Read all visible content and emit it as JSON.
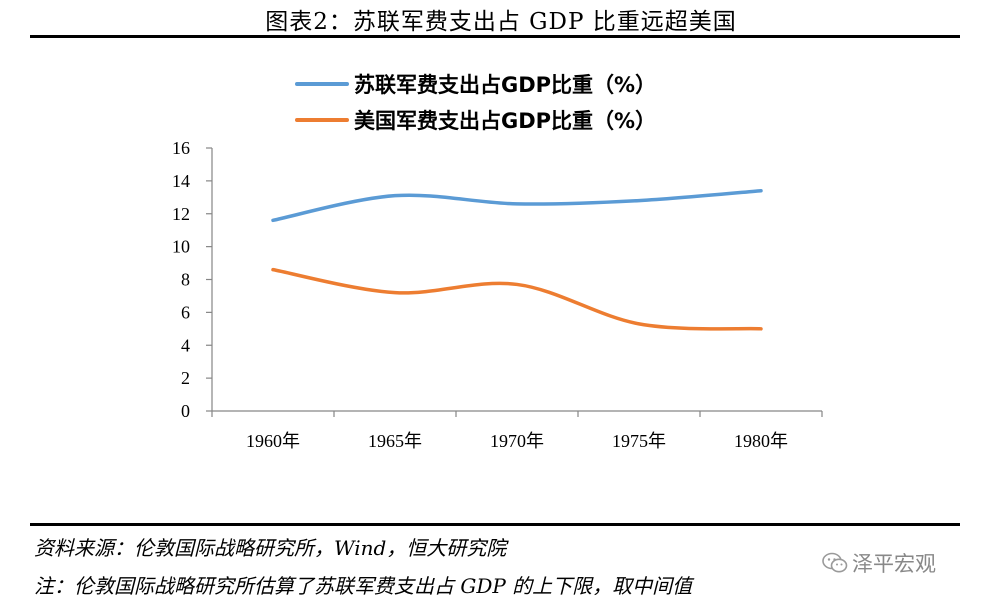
{
  "figure_title": "图表2：苏联军费支出占 GDP 比重远超美国",
  "source_note": "资料来源：伦敦国际战略研究所，Wind，恒大研究院",
  "footnote": "注：伦敦国际战略研究所估算了苏联军费支出占 GDP 的上下限，取中间值",
  "watermark": "泽平宏观",
  "colors": {
    "ussr": "#5B9BD5",
    "usa": "#ED7D31",
    "axis": "#868686"
  },
  "chart_data": {
    "type": "line",
    "title": "",
    "xlabel": "",
    "ylabel": "",
    "categories": [
      "1960年",
      "1965年",
      "1970年",
      "1975年",
      "1980年"
    ],
    "ylim": [
      0,
      16
    ],
    "yticks": [
      0,
      2,
      4,
      6,
      8,
      10,
      12,
      14,
      16
    ],
    "grid": false,
    "legend_position": "top",
    "series": [
      {
        "name": "苏联军费支出占GDP比重（%）",
        "color": "#5B9BD5",
        "values": [
          11.6,
          13.1,
          12.6,
          12.8,
          13.4
        ]
      },
      {
        "name": "美国军费支出占GDP比重（%）",
        "color": "#ED7D31",
        "values": [
          8.6,
          7.2,
          7.7,
          5.3,
          5.0
        ]
      }
    ]
  }
}
